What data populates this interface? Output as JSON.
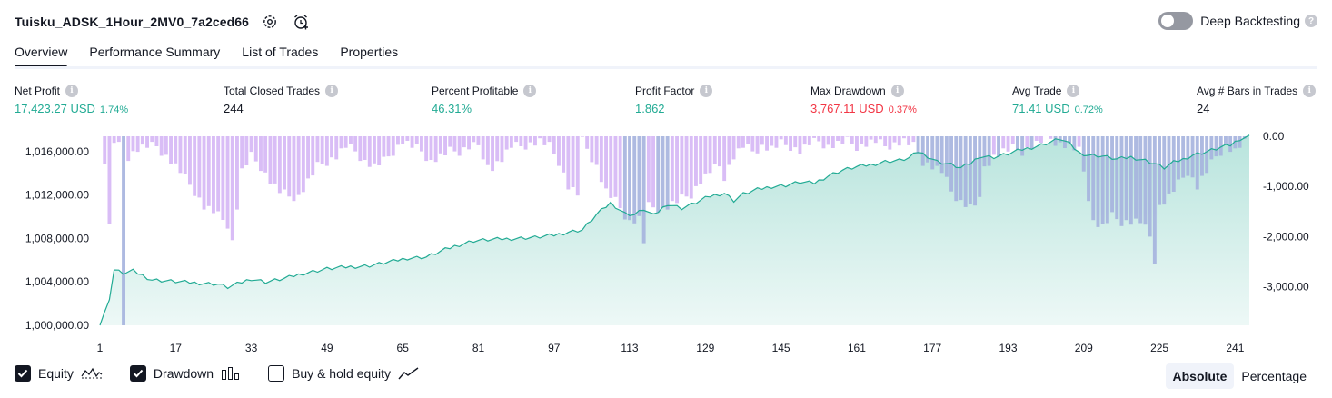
{
  "header": {
    "title": "Tuisku_ADSK_1Hour_2MV0_7a2ced66",
    "settings_icon": "gear-icon",
    "alert_icon": "alarm-clock-icon",
    "deep_backtesting_label": "Deep Backtesting",
    "deep_backtesting_on": false,
    "help_symbol": "?"
  },
  "tabs": [
    {
      "label": "Overview",
      "active": true
    },
    {
      "label": "Performance Summary",
      "active": false
    },
    {
      "label": "List of Trades",
      "active": false
    },
    {
      "label": "Properties",
      "active": false
    }
  ],
  "info_symbol": "i",
  "stats": {
    "net_profit": {
      "label": "Net Profit",
      "value": "17,423.27 USD",
      "pct": "1.74%"
    },
    "total_closed_trades": {
      "label": "Total Closed Trades",
      "value": "244"
    },
    "percent_profitable": {
      "label": "Percent Profitable",
      "value": "46.31%"
    },
    "profit_factor": {
      "label": "Profit Factor",
      "value": "1.862"
    },
    "max_drawdown": {
      "label": "Max Drawdown",
      "value": "3,767.11 USD",
      "pct": "0.37%"
    },
    "avg_trade": {
      "label": "Avg Trade",
      "value": "71.41 USD",
      "pct": "0.72%"
    },
    "avg_bars": {
      "label": "Avg # Bars in Trades",
      "value": "24"
    }
  },
  "colors": {
    "equity_line": "#22ab94",
    "equity_fill": "#22ab94",
    "drawdown_bar": "#d5b6f5",
    "drawdown_overlap": "#a5b3de"
  },
  "chart_data": {
    "type": "area",
    "x_ticks": [
      "1",
      "17",
      "33",
      "49",
      "65",
      "81",
      "97",
      "113",
      "129",
      "145",
      "161",
      "177",
      "193",
      "209",
      "225",
      "241"
    ],
    "xlim": [
      1,
      244
    ],
    "left_axis": {
      "ticks": [
        "1,000,000.00",
        "1,004,000.00",
        "1,008,000.00",
        "1,012,000.00",
        "1,016,000.00"
      ],
      "ylim": [
        1000000,
        1017423
      ]
    },
    "right_axis": {
      "ticks": [
        "0.00",
        "-1,000.00",
        "-2,000.00",
        "-3,000.00"
      ],
      "ylim": [
        -3767,
        0
      ]
    },
    "series": [
      {
        "name": "Equity",
        "kind": "line",
        "anchors": [
          [
            1,
            1000000
          ],
          [
            3,
            1002500
          ],
          [
            4,
            1005100
          ],
          [
            6,
            1004800
          ],
          [
            8,
            1005000
          ],
          [
            10,
            1004600
          ],
          [
            12,
            1004200
          ],
          [
            15,
            1004100
          ],
          [
            18,
            1004000
          ],
          [
            22,
            1003900
          ],
          [
            26,
            1003800
          ],
          [
            28,
            1003500
          ],
          [
            30,
            1003800
          ],
          [
            33,
            1004300
          ],
          [
            36,
            1004000
          ],
          [
            40,
            1004300
          ],
          [
            44,
            1004800
          ],
          [
            49,
            1005200
          ],
          [
            54,
            1005400
          ],
          [
            58,
            1005500
          ],
          [
            63,
            1005900
          ],
          [
            66,
            1006200
          ],
          [
            70,
            1006300
          ],
          [
            73,
            1006800
          ],
          [
            76,
            1007300
          ],
          [
            80,
            1007800
          ],
          [
            84,
            1007900
          ],
          [
            88,
            1008000
          ],
          [
            93,
            1008100
          ],
          [
            97,
            1008300
          ],
          [
            100,
            1008600
          ],
          [
            103,
            1008800
          ],
          [
            106,
            1010200
          ],
          [
            109,
            1011300
          ],
          [
            112,
            1010300
          ],
          [
            114,
            1010200
          ],
          [
            116,
            1010700
          ],
          [
            118,
            1010100
          ],
          [
            121,
            1011200
          ],
          [
            124,
            1010800
          ],
          [
            127,
            1011300
          ],
          [
            130,
            1011900
          ],
          [
            133,
            1012200
          ],
          [
            135,
            1011500
          ],
          [
            137,
            1012100
          ],
          [
            140,
            1012500
          ],
          [
            143,
            1012800
          ],
          [
            146,
            1012900
          ],
          [
            149,
            1013200
          ],
          [
            152,
            1013100
          ],
          [
            155,
            1013800
          ],
          [
            158,
            1014300
          ],
          [
            161,
            1014600
          ],
          [
            164,
            1014800
          ],
          [
            167,
            1015100
          ],
          [
            170,
            1015200
          ],
          [
            172,
            1015400
          ],
          [
            174,
            1016000
          ],
          [
            176,
            1015600
          ],
          [
            178,
            1015100
          ],
          [
            181,
            1014800
          ],
          [
            183,
            1014500
          ],
          [
            185,
            1014900
          ],
          [
            187,
            1015600
          ],
          [
            190,
            1015500
          ],
          [
            193,
            1015800
          ],
          [
            196,
            1016200
          ],
          [
            199,
            1016500
          ],
          [
            202,
            1016900
          ],
          [
            204,
            1017200
          ],
          [
            206,
            1016700
          ],
          [
            208,
            1015900
          ],
          [
            210,
            1015700
          ],
          [
            213,
            1015600
          ],
          [
            216,
            1015300
          ],
          [
            219,
            1015500
          ],
          [
            222,
            1015200
          ],
          [
            224,
            1014900
          ],
          [
            226,
            1014500
          ],
          [
            228,
            1015000
          ],
          [
            230,
            1015300
          ],
          [
            232,
            1015700
          ],
          [
            235,
            1016000
          ],
          [
            238,
            1016400
          ],
          [
            240,
            1016600
          ],
          [
            242,
            1017200
          ],
          [
            244,
            1017423
          ]
        ]
      },
      {
        "name": "Drawdown",
        "kind": "bar",
        "anchors": [
          [
            1,
            0
          ],
          [
            2,
            -500
          ],
          [
            3,
            -1800
          ],
          [
            4,
            -100
          ],
          [
            5,
            -200
          ],
          [
            6,
            -3767
          ],
          [
            7,
            -400
          ],
          [
            9,
            -250
          ],
          [
            11,
            -200
          ],
          [
            13,
            -200
          ],
          [
            16,
            -500
          ],
          [
            18,
            -700
          ],
          [
            21,
            -1100
          ],
          [
            23,
            -1400
          ],
          [
            25,
            -1500
          ],
          [
            28,
            -1750
          ],
          [
            29,
            -2100
          ],
          [
            31,
            -700
          ],
          [
            33,
            -400
          ],
          [
            35,
            -600
          ],
          [
            37,
            -900
          ],
          [
            39,
            -1100
          ],
          [
            41,
            -1200
          ],
          [
            43,
            -1200
          ],
          [
            45,
            -900
          ],
          [
            47,
            -600
          ],
          [
            49,
            -500
          ],
          [
            51,
            -400
          ],
          [
            53,
            -200
          ],
          [
            55,
            -300
          ],
          [
            57,
            -500
          ],
          [
            59,
            -600
          ],
          [
            61,
            -500
          ],
          [
            63,
            -300
          ],
          [
            65,
            -100
          ],
          [
            67,
            -200
          ],
          [
            69,
            -300
          ],
          [
            71,
            -500
          ],
          [
            73,
            -400
          ],
          [
            75,
            -300
          ],
          [
            77,
            -300
          ],
          [
            79,
            -200
          ],
          [
            81,
            -150
          ],
          [
            82,
            -550
          ],
          [
            84,
            -600
          ],
          [
            86,
            -450
          ],
          [
            88,
            -200
          ],
          [
            90,
            -200
          ],
          [
            92,
            -150
          ],
          [
            94,
            -100
          ],
          [
            96,
            -200
          ],
          [
            98,
            -500
          ],
          [
            100,
            -1000
          ],
          [
            102,
            -1150
          ],
          [
            103,
            -100
          ],
          [
            104,
            -250
          ],
          [
            106,
            -600
          ],
          [
            108,
            -1100
          ],
          [
            110,
            -1300
          ],
          [
            113,
            -1700
          ],
          [
            115,
            -1650
          ],
          [
            116,
            -2100
          ],
          [
            117,
            -1400
          ],
          [
            120,
            -1450
          ],
          [
            123,
            -1300
          ],
          [
            126,
            -1150
          ],
          [
            128,
            -900
          ],
          [
            130,
            -700
          ],
          [
            132,
            -600
          ],
          [
            133,
            -800
          ],
          [
            135,
            -400
          ],
          [
            137,
            -200
          ],
          [
            139,
            -300
          ],
          [
            141,
            -200
          ],
          [
            143,
            -250
          ],
          [
            145,
            -150
          ],
          [
            147,
            -200
          ],
          [
            149,
            -300
          ],
          [
            151,
            -150
          ],
          [
            153,
            -100
          ],
          [
            155,
            -200
          ],
          [
            157,
            -150
          ],
          [
            159,
            -100
          ],
          [
            161,
            -200
          ],
          [
            163,
            -150
          ],
          [
            165,
            -100
          ],
          [
            167,
            -200
          ],
          [
            169,
            -150
          ],
          [
            171,
            -100
          ],
          [
            173,
            -200
          ],
          [
            175,
            -500
          ],
          [
            177,
            -600
          ],
          [
            179,
            -700
          ],
          [
            181,
            -1100
          ],
          [
            183,
            -1300
          ],
          [
            185,
            -1400
          ],
          [
            187,
            -1300
          ],
          [
            188,
            -600
          ],
          [
            190,
            -400
          ],
          [
            192,
            -300
          ],
          [
            194,
            -250
          ],
          [
            196,
            -300
          ],
          [
            198,
            -200
          ],
          [
            200,
            -100
          ],
          [
            202,
            -50
          ],
          [
            204,
            -150
          ],
          [
            206,
            -200
          ],
          [
            208,
            -300
          ],
          [
            209,
            -700
          ],
          [
            211,
            -1700
          ],
          [
            213,
            -1800
          ],
          [
            215,
            -1600
          ],
          [
            217,
            -1700
          ],
          [
            219,
            -1700
          ],
          [
            221,
            -1700
          ],
          [
            223,
            -2000
          ],
          [
            224,
            -2450
          ],
          [
            225,
            -1400
          ],
          [
            227,
            -1200
          ],
          [
            229,
            -950
          ],
          [
            231,
            -700
          ],
          [
            233,
            -1000
          ],
          [
            235,
            -700
          ],
          [
            237,
            -400
          ],
          [
            239,
            -200
          ],
          [
            241,
            -300
          ],
          [
            242,
            -200
          ],
          [
            243,
            -50
          ],
          [
            244,
            0
          ]
        ]
      }
    ],
    "legend": [
      "Equity",
      "Drawdown",
      "Buy & hold equity"
    ]
  },
  "footer": {
    "checkboxes": [
      {
        "label": "Equity",
        "checked": true,
        "icon": "equity-line-icon"
      },
      {
        "label": "Drawdown",
        "checked": true,
        "icon": "drawdown-bars-icon"
      },
      {
        "label": "Buy & hold equity",
        "checked": false,
        "icon": "trend-line-icon"
      }
    ],
    "modes": [
      {
        "label": "Absolute",
        "active": true
      },
      {
        "label": "Percentage",
        "active": false
      }
    ]
  }
}
